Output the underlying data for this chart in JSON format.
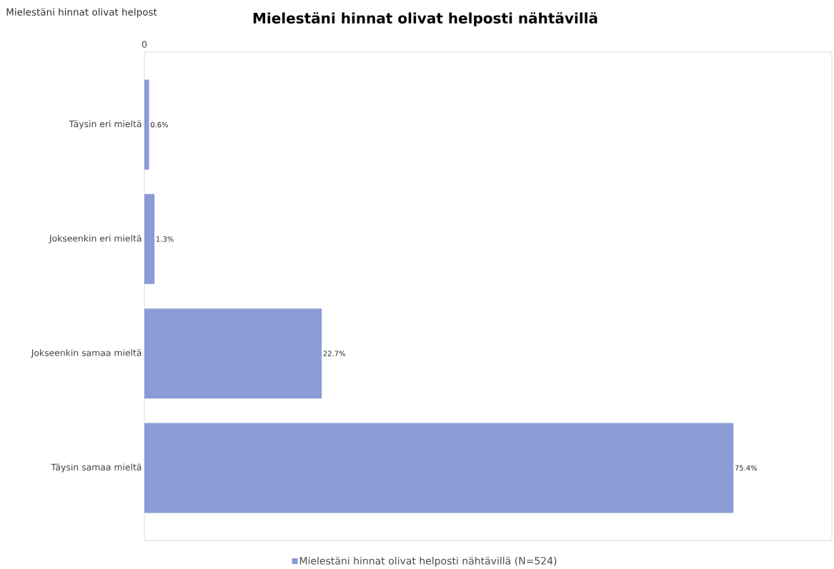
{
  "chart_data": {
    "type": "bar",
    "orientation": "horizontal",
    "title": "Mielestäni hinnat olivat helposti nähtävillä",
    "annotations": [
      "Mielestäni hinnat olivat helpost",
      "0"
    ],
    "categories": [
      "Täysin eri mieltä",
      "Jokseenkin eri mieltä",
      "Jokseenkin samaa mieltä",
      "Täysin samaa mieltä"
    ],
    "series": [
      {
        "name": "Mielestäni hinnat olivat helposti nähtävillä (N=524)",
        "color": "#8b9bd6",
        "values": [
          0.6,
          1.3,
          22.7,
          75.4
        ],
        "value_labels": [
          "0.6%",
          "1.3%",
          "22.7%",
          "75.4%"
        ]
      }
    ],
    "xlim": [
      0,
      88
    ],
    "legend": "bottom"
  }
}
